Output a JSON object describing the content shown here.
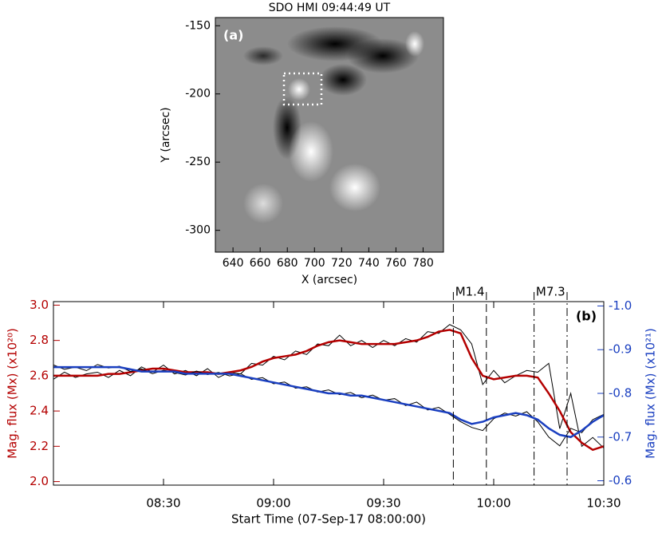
{
  "chart_data": [
    {
      "type": "image",
      "title": "SDO HMI 09:44:49 UT",
      "panel_label": "(a)",
      "xlabel": "X (arcsec)",
      "ylabel": "Y (arcsec)",
      "xlim": [
        627,
        795
      ],
      "xticks": [
        640,
        660,
        680,
        700,
        720,
        740,
        760,
        780
      ],
      "ylim": [
        -316,
        -144
      ],
      "yticks": [
        -300,
        -250,
        -200,
        -150
      ]
    },
    {
      "type": "line",
      "panel_label": "(b)",
      "xlabel": "Start Time (07-Sep-17 08:00:00)",
      "ylabel": "Mag. flux (Mx) (x10²⁰)",
      "ylabel_color": "#b40000",
      "y2label": "Mag. flux (Mx) (x10²¹)",
      "y2label_color": "#1a3fc0",
      "x": [
        0,
        3,
        6,
        9,
        12,
        15,
        18,
        21,
        24,
        27,
        30,
        33,
        36,
        39,
        42,
        45,
        48,
        51,
        54,
        57,
        60,
        63,
        66,
        69,
        72,
        75,
        78,
        81,
        84,
        87,
        90,
        93,
        96,
        99,
        102,
        105,
        108,
        111,
        114,
        117,
        120,
        123,
        126,
        129,
        132,
        135,
        138,
        141,
        144,
        147,
        150
      ],
      "xlim": [
        0,
        150
      ],
      "xticks": [
        {
          "value": 30,
          "label": "08:30"
        },
        {
          "value": 60,
          "label": "09:00"
        },
        {
          "value": 90,
          "label": "09:30"
        },
        {
          "value": 120,
          "label": "10:00"
        },
        {
          "value": 150,
          "label": "10:30"
        }
      ],
      "ylim": [
        1.98,
        3.02
      ],
      "yticks": [
        {
          "value": 2,
          "label": "2.0"
        },
        2.2,
        2.4,
        2.6,
        2.8,
        {
          "value": 3,
          "label": "3.0"
        }
      ],
      "y2lim": [
        -0.59,
        -1.01
      ],
      "y2ticks": [
        {
          "value": -1,
          "label": "-1.0"
        },
        -0.9,
        -0.8,
        -0.7,
        {
          "value": -0.6,
          "label": "-0.6"
        }
      ],
      "series": [
        {
          "color": "#000000",
          "width": 1,
          "values": [
            2.58,
            2.62,
            2.59,
            2.61,
            2.62,
            2.59,
            2.63,
            2.6,
            2.65,
            2.62,
            2.66,
            2.61,
            2.63,
            2.6,
            2.64,
            2.59,
            2.62,
            2.61,
            2.67,
            2.66,
            2.71,
            2.69,
            2.74,
            2.72,
            2.78,
            2.77,
            2.83,
            2.77,
            2.8,
            2.76,
            2.8,
            2.77,
            2.81,
            2.79,
            2.85,
            2.84,
            2.89,
            2.86,
            2.78,
            2.55,
            2.63,
            2.56,
            2.6,
            2.63,
            2.62,
            2.67,
            2.3,
            2.5,
            2.2,
            2.25,
            2.19
          ]
        },
        {
          "color": "#b40000",
          "width": 2.5,
          "values": [
            2.6,
            2.6,
            2.6,
            2.6,
            2.6,
            2.61,
            2.61,
            2.62,
            2.63,
            2.64,
            2.64,
            2.63,
            2.62,
            2.62,
            2.62,
            2.61,
            2.62,
            2.63,
            2.65,
            2.68,
            2.7,
            2.71,
            2.72,
            2.74,
            2.77,
            2.79,
            2.8,
            2.79,
            2.78,
            2.78,
            2.78,
            2.78,
            2.79,
            2.8,
            2.82,
            2.85,
            2.86,
            2.84,
            2.7,
            2.6,
            2.58,
            2.59,
            2.6,
            2.6,
            2.59,
            2.5,
            2.4,
            2.28,
            2.22,
            2.18,
            2.2
          ]
        },
        {
          "color": "#000000",
          "width": 1,
          "axis": "y2",
          "values": [
            -0.865,
            -0.855,
            -0.86,
            -0.852,
            -0.866,
            -0.858,
            -0.862,
            -0.85,
            -0.856,
            -0.845,
            -0.853,
            -0.848,
            -0.842,
            -0.851,
            -0.843,
            -0.848,
            -0.84,
            -0.845,
            -0.832,
            -0.836,
            -0.822,
            -0.826,
            -0.812,
            -0.815,
            -0.803,
            -0.808,
            -0.797,
            -0.802,
            -0.79,
            -0.796,
            -0.784,
            -0.788,
            -0.772,
            -0.78,
            -0.762,
            -0.768,
            -0.752,
            -0.735,
            -0.722,
            -0.715,
            -0.742,
            -0.755,
            -0.748,
            -0.758,
            -0.735,
            -0.7,
            -0.68,
            -0.72,
            -0.71,
            -0.74,
            -0.752
          ]
        },
        {
          "color": "#1a3fc0",
          "width": 2.5,
          "axis": "y2",
          "values": [
            -0.86,
            -0.86,
            -0.86,
            -0.86,
            -0.86,
            -0.86,
            -0.86,
            -0.855,
            -0.85,
            -0.85,
            -0.85,
            -0.85,
            -0.845,
            -0.845,
            -0.845,
            -0.845,
            -0.845,
            -0.84,
            -0.835,
            -0.83,
            -0.825,
            -0.82,
            -0.815,
            -0.81,
            -0.805,
            -0.8,
            -0.8,
            -0.795,
            -0.795,
            -0.79,
            -0.785,
            -0.78,
            -0.775,
            -0.77,
            -0.765,
            -0.76,
            -0.755,
            -0.74,
            -0.73,
            -0.735,
            -0.745,
            -0.75,
            -0.755,
            -0.75,
            -0.74,
            -0.72,
            -0.705,
            -0.7,
            -0.715,
            -0.735,
            -0.75
          ]
        }
      ],
      "annotations": [
        {
          "label": "M1.4",
          "x": [
            109,
            118
          ],
          "style": "dashed"
        },
        {
          "label": "M7.3",
          "x": [
            131,
            140
          ],
          "style": "dashdot"
        }
      ]
    }
  ]
}
